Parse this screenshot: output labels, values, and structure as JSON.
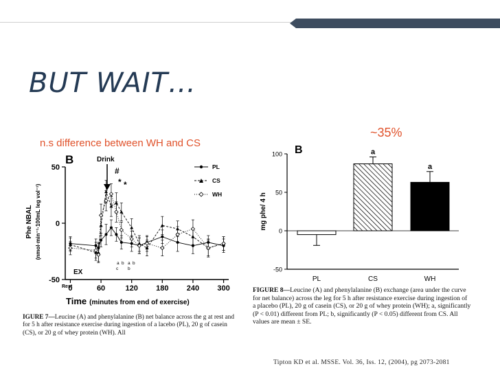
{
  "slide": {
    "title": "BUT WAIT…",
    "annotation_left": "n.s difference between WH and CS",
    "annotation_right": "~35%",
    "citation": "Tipton KD et al. MSSE. Vol. 36, Iss. 12, (2004), pg 2073-2081",
    "accent_color": "#3d4c5f",
    "annotation_color": "#e0522b"
  },
  "left_figure": {
    "panel_label": "B",
    "drink_label": "Drink",
    "rest_label": "Rest",
    "ex_label": "EX",
    "hash_marker": "#",
    "star_marker": "*",
    "mini_markers": [
      "a",
      "b",
      "a",
      "b",
      "c",
      "b"
    ],
    "ylabel_line1": "Phe NBAL",
    "ylabel_line2": "(nmol·min⁻¹·100mL leg vol⁻¹)",
    "xlabel_main": "Time",
    "xlabel_sub": "(minutes from end of exercise)",
    "legend": [
      "PL",
      "CS",
      "WH"
    ],
    "caption_bold": "IGURE 7—",
    "caption_text": "Leucine (A) and phenylalanine (B) net balance across the g at rest and for 5 h after resistance exercise during ingestion of a lacebo (PL), 20 g of casein (CS), or 20 g of whey protein (WH). All"
  },
  "right_figure": {
    "panel_label": "B",
    "caption_bold": "FIGURE 8—",
    "caption_text": "Leucine (A) and phenylalanine (B) exchange (area under the curve for net balance) across the leg for 5 h after resistance exercise during ingestion of a placebo (PL), 20 g of casein (CS), or 20 g of whey protein (WH); a, significantly (P < 0.01) different from PL; b, significantly (P < 0.05) different from CS. All values are mean ± SE."
  },
  "chart_data": [
    {
      "type": "line",
      "xlabel": "Time (minutes from end of exercise)",
      "ylabel": "Phe NBAL (nmol·min⁻¹·100mL leg vol⁻¹)",
      "xlim": [
        -10,
        310
      ],
      "ylim": [
        -50,
        50
      ],
      "x_ticks": [
        0,
        60,
        120,
        180,
        240,
        300
      ],
      "y_ticks": [
        -50,
        0,
        50
      ],
      "legend_position": "top-right",
      "series": [
        {
          "name": "PL",
          "marker": "filled-circle",
          "line": "solid",
          "x": [
            0,
            50,
            55,
            60,
            70,
            80,
            90,
            100,
            120,
            135,
            150,
            180,
            210,
            240,
            270,
            300
          ],
          "y": [
            -18,
            -20,
            -22,
            -15,
            -10,
            -4,
            -10,
            -17,
            -18,
            -20,
            -17,
            -12,
            -17,
            -20,
            -17,
            -20
          ],
          "err": [
            6,
            6,
            5,
            6,
            9,
            7,
            6,
            6,
            7,
            7,
            5,
            6,
            8,
            7,
            6,
            6
          ]
        },
        {
          "name": "CS",
          "marker": "filled-triangle",
          "line": "dashed",
          "x": [
            0,
            50,
            55,
            60,
            70,
            80,
            90,
            100,
            120,
            135,
            150,
            180,
            210,
            240,
            270,
            300
          ],
          "y": [
            -19,
            -26,
            -26,
            -2,
            28,
            15,
            18,
            10,
            -4,
            -18,
            -22,
            -2,
            -5,
            -12,
            -22,
            -18
          ],
          "err": [
            6,
            7,
            8,
            9,
            10,
            9,
            9,
            8,
            8,
            7,
            7,
            8,
            7,
            7,
            8,
            6
          ]
        },
        {
          "name": "WH",
          "marker": "open-diamond",
          "line": "dotted",
          "x": [
            0,
            50,
            55,
            60,
            70,
            80,
            90,
            100,
            120,
            135,
            150,
            180,
            210,
            240,
            270,
            300
          ],
          "y": [
            -22,
            -24,
            -28,
            7,
            20,
            26,
            10,
            -6,
            -14,
            -20,
            -18,
            -22,
            -10,
            -5,
            -22,
            -18
          ],
          "err": [
            6,
            7,
            7,
            10,
            9,
            9,
            9,
            7,
            7,
            7,
            7,
            7,
            7,
            8,
            7,
            6
          ]
        }
      ]
    },
    {
      "type": "bar",
      "ylabel": "mg phe/ 4 h",
      "categories": [
        "PL",
        "CS",
        "WH"
      ],
      "values": [
        -5,
        87,
        63
      ],
      "errors": [
        14,
        9,
        14
      ],
      "bar_patterns": [
        "open",
        "hatched",
        "solid"
      ],
      "annotations": [
        "",
        "a",
        "a"
      ],
      "ylim": [
        -50,
        100
      ],
      "y_ticks": [
        -50,
        0,
        50,
        100
      ]
    }
  ]
}
